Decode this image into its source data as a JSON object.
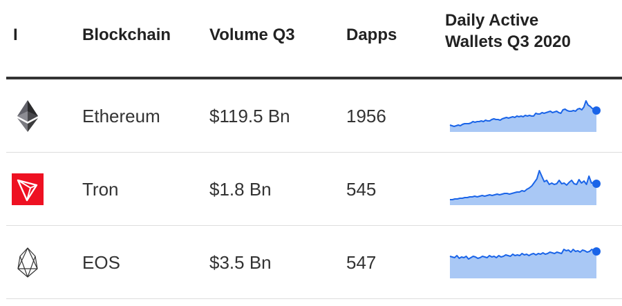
{
  "columns": {
    "icon": "I",
    "blockchain": "Blockchain",
    "volume": "Volume Q3",
    "dapps": "Dapps",
    "wallets_line1": "Daily Active",
    "wallets_line2": "Wallets Q3 2020"
  },
  "rows": [
    {
      "icon": "ethereum-logo-icon",
      "name": "Ethereum",
      "volume": "$119.5 Bn",
      "dapps": "1956"
    },
    {
      "icon": "tron-logo-icon",
      "name": "Tron",
      "volume": "$1.8 Bn",
      "dapps": "545"
    },
    {
      "icon": "eos-logo-icon",
      "name": "EOS",
      "volume": "$3.5 Bn",
      "dapps": "547"
    }
  ],
  "colors": {
    "sparkline_line": "#1a64e8",
    "sparkline_fill": "#a9c8f5",
    "tron_red": "#ee1122",
    "ethereum_dark": "#3c3c3d",
    "header_rule": "#333333",
    "row_divider": "#dddddd"
  },
  "chart_data": [
    {
      "type": "area",
      "series": [
        {
          "values": [
            10,
            9,
            8,
            9,
            10,
            9,
            11,
            12,
            12,
            12,
            13,
            15,
            14,
            15,
            15,
            16,
            15,
            17,
            16,
            16,
            18,
            19,
            18,
            18,
            17,
            19,
            20,
            21,
            20,
            21,
            22,
            21,
            23,
            22,
            23,
            22,
            24,
            23,
            24,
            23,
            23,
            27,
            26,
            26,
            28,
            27,
            28,
            29,
            30,
            28,
            29,
            30,
            28,
            27,
            32,
            33,
            31,
            30,
            30,
            31,
            30,
            33,
            34,
            32,
            36,
            45,
            39,
            37,
            34,
            33,
            31
          ]
        }
      ]
    },
    {
      "type": "area",
      "series": [
        {
          "values": [
            8,
            8,
            9,
            9,
            10,
            10,
            11,
            11,
            12,
            12,
            13,
            12,
            13,
            14,
            13,
            14,
            15,
            14,
            15,
            16,
            15,
            16,
            17,
            17,
            16,
            17,
            18,
            19,
            19,
            21,
            20,
            23,
            25,
            28,
            33,
            38,
            50,
            42,
            34,
            36,
            30,
            32,
            30,
            31,
            36,
            31,
            32,
            29,
            33,
            36,
            31,
            30,
            37,
            32,
            35,
            30,
            42,
            32,
            33,
            31
          ]
        }
      ]
    },
    {
      "type": "area",
      "series": [
        {
          "values": [
            32,
            31,
            30,
            33,
            29,
            31,
            30,
            32,
            28,
            30,
            32,
            31,
            29,
            30,
            32,
            31,
            30,
            33,
            31,
            32,
            30,
            33,
            31,
            32,
            34,
            33,
            32,
            35,
            33,
            34,
            33,
            36,
            34,
            35,
            33,
            35,
            36,
            34,
            36,
            35,
            37,
            35,
            36,
            38,
            37,
            36,
            38,
            37,
            36,
            42,
            40,
            41,
            38,
            42,
            39,
            40,
            38,
            41,
            40,
            38,
            39,
            42,
            40,
            39
          ]
        }
      ]
    }
  ]
}
